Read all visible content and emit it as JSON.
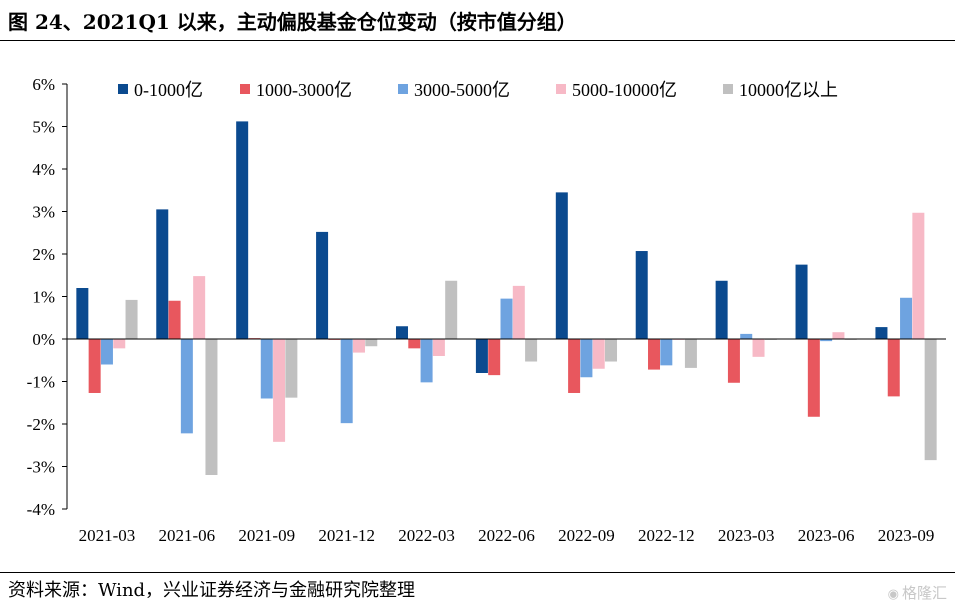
{
  "title": "图 24、2021Q1 以来，主动偏股基金仓位变动（按市值分组）",
  "source": "资料来源：Wind，兴业证券经济与金融研究院整理",
  "watermark": "格隆汇",
  "chart_data": {
    "type": "bar",
    "title": "图 24、2021Q1 以来，主动偏股基金仓位变动（按市值分组）",
    "xlabel": "",
    "ylabel": "",
    "categories": [
      "2021-03",
      "2021-06",
      "2021-09",
      "2021-12",
      "2022-03",
      "2022-06",
      "2022-09",
      "2022-12",
      "2023-03",
      "2023-06",
      "2023-09"
    ],
    "ylim": [
      -4,
      6
    ],
    "yticks": [
      -4,
      -3,
      -2,
      -1,
      0,
      1,
      2,
      3,
      4,
      5,
      6
    ],
    "ytick_labels": [
      "-4%",
      "-3%",
      "-2%",
      "-1%",
      "0%",
      "1%",
      "2%",
      "3%",
      "4%",
      "5%",
      "6%"
    ],
    "grid": false,
    "legend_position": "top",
    "series": [
      {
        "name": "0-1000亿",
        "color": "#0b4a8f",
        "values": [
          1.2,
          3.05,
          5.12,
          2.52,
          0.3,
          -0.8,
          3.45,
          2.07,
          1.37,
          1.75,
          0.28
        ]
      },
      {
        "name": "1000-3000亿",
        "color": "#e8575e",
        "values": [
          -1.27,
          0.9,
          0.02,
          -0.02,
          -0.22,
          -0.85,
          -1.27,
          -0.72,
          -1.03,
          -1.83,
          -1.35
        ]
      },
      {
        "name": "3000-5000亿",
        "color": "#6ea3e0",
        "values": [
          -0.6,
          -2.22,
          -1.4,
          -1.98,
          -1.02,
          0.95,
          -0.9,
          -0.62,
          0.12,
          -0.05,
          0.97
        ]
      },
      {
        "name": "5000-10000亿",
        "color": "#f7b9c6",
        "values": [
          -0.22,
          1.48,
          -2.42,
          -0.32,
          -0.4,
          1.25,
          -0.7,
          -0.02,
          -0.42,
          0.16,
          2.97
        ]
      },
      {
        "name": "10000亿以上",
        "color": "#c0c0c0",
        "values": [
          0.92,
          -3.2,
          -1.38,
          -0.17,
          1.37,
          -0.53,
          -0.53,
          -0.68,
          -0.02,
          -0.02,
          -2.85
        ]
      }
    ]
  }
}
